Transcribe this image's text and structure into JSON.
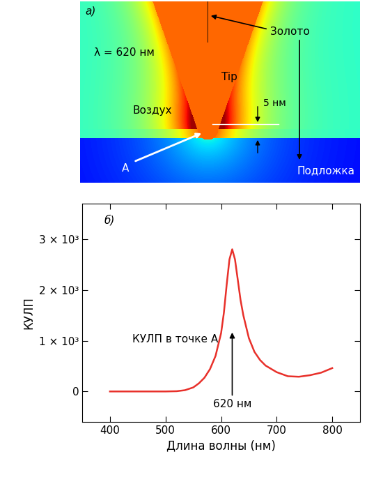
{
  "panel_a": {
    "label": "а)",
    "wavelength_label": "λ = 620 нм",
    "gold": "Золото",
    "tip": "Tip",
    "gap": "5 нм",
    "air": "Воздух",
    "point": "A",
    "substrate": "Подложка"
  },
  "chart_data": {
    "type": "line",
    "panel_label": "б)",
    "x_label": "Длина волны (нм)",
    "y_label": "КУЛП",
    "x": [
      400,
      450,
      500,
      520,
      535,
      550,
      560,
      570,
      580,
      590,
      600,
      605,
      610,
      615,
      620,
      625,
      630,
      635,
      640,
      650,
      660,
      670,
      680,
      700,
      720,
      740,
      760,
      780,
      800
    ],
    "series": [
      {
        "name": "КУЛП в точке А",
        "color": "#e8302a",
        "values": [
          0,
          0,
          0,
          5,
          25,
          80,
          160,
          270,
          440,
          700,
          1150,
          1550,
          2100,
          2600,
          2800,
          2600,
          2200,
          1800,
          1500,
          1050,
          780,
          620,
          510,
          380,
          300,
          290,
          320,
          370,
          460
        ]
      }
    ],
    "xlim": [
      350,
      850
    ],
    "xticks": [
      400,
      500,
      600,
      700,
      800
    ],
    "ylim": [
      -600,
      3700
    ],
    "yticks": [
      0,
      {
        "value": 1000,
        "label": "1 × 10³"
      },
      {
        "value": 2000,
        "label": "2 × 10³"
      },
      {
        "value": 3000,
        "label": "3 × 10³"
      }
    ],
    "annotations": [
      {
        "text": "КУЛП в точке А"
      },
      {
        "text": "620 нм",
        "x": 620,
        "y": 1200
      }
    ]
  }
}
